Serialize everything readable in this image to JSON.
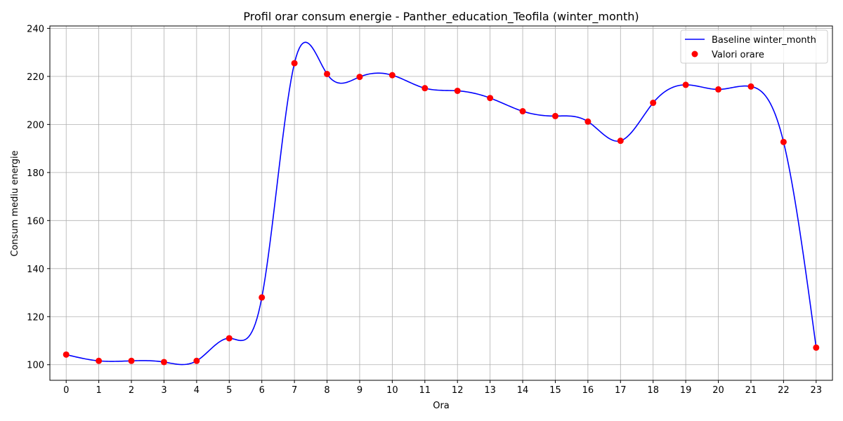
{
  "chart_data": {
    "type": "line",
    "title": "Profil orar consum energie - Panther_education_Teofila (winter_month)",
    "xlabel": "Ora",
    "ylabel": "Consum mediu energie",
    "x": [
      0,
      1,
      2,
      3,
      4,
      5,
      6,
      7,
      8,
      9,
      10,
      11,
      12,
      13,
      14,
      15,
      16,
      17,
      18,
      19,
      20,
      21,
      22,
      23
    ],
    "x_ticks": [
      "0",
      "1",
      "2",
      "3",
      "4",
      "5",
      "6",
      "7",
      "8",
      "9",
      "10",
      "11",
      "12",
      "13",
      "14",
      "15",
      "16",
      "17",
      "18",
      "19",
      "20",
      "21",
      "22",
      "23"
    ],
    "y_ticks": [
      "100",
      "120",
      "140",
      "160",
      "180",
      "200",
      "220",
      "240"
    ],
    "xlim": [
      -0.5,
      23.5
    ],
    "ylim": [
      93.5,
      241
    ],
    "grid": true,
    "legend_position": "top-right",
    "series": [
      {
        "name": "Baseline winter_month",
        "kind": "line",
        "color": "#0000ff",
        "values": [
          104.2,
          101.6,
          101.6,
          101.1,
          101.6,
          111.0,
          128.0,
          225.5,
          221.0,
          219.8,
          220.5,
          215.1,
          214.0,
          211.0,
          205.5,
          203.5,
          201.2,
          193.2,
          209.0,
          216.5,
          214.6,
          215.8,
          192.7,
          107.1
        ]
      },
      {
        "name": "Valori orare",
        "kind": "scatter",
        "color": "#ff0000",
        "values": [
          104.2,
          101.6,
          101.6,
          101.1,
          101.6,
          111.0,
          128.0,
          225.5,
          221.0,
          219.8,
          220.5,
          215.1,
          214.0,
          211.0,
          205.5,
          203.5,
          201.2,
          193.2,
          209.0,
          216.5,
          214.6,
          215.8,
          192.7,
          107.1
        ]
      }
    ]
  }
}
